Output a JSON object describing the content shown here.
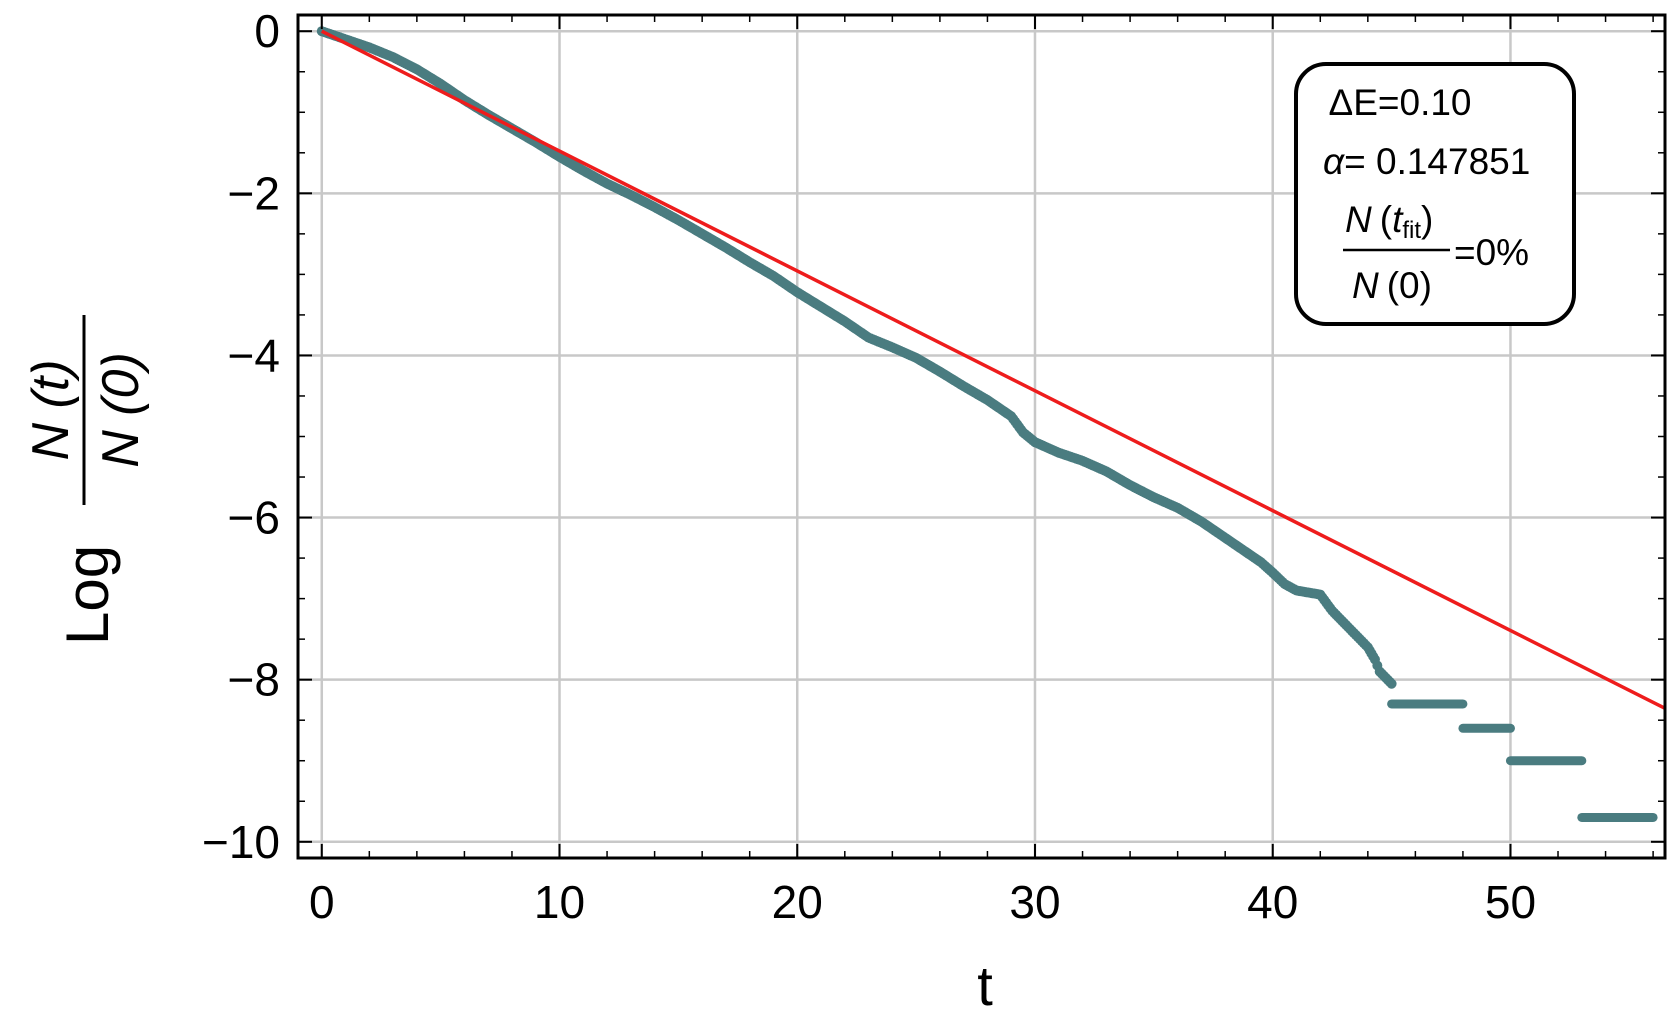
{
  "chart_data": {
    "type": "scatter",
    "title": "",
    "xlabel": "t",
    "ylabel": {
      "prefix": "Log",
      "numerator": "N (t)",
      "denominator": "N (0)"
    },
    "xlim": [
      -1,
      56.5
    ],
    "ylim": [
      -10.2,
      0.2
    ],
    "x_ticks": [
      0,
      10,
      20,
      30,
      40,
      50
    ],
    "y_ticks": [
      0,
      -2,
      -4,
      -6,
      -8,
      -10
    ],
    "x_tick_labels": [
      "0",
      "10",
      "20",
      "30",
      "40",
      "50"
    ],
    "y_tick_labels": [
      "0",
      "−2",
      "−4",
      "−6",
      "−8",
      "−10"
    ],
    "grid": true,
    "colors": {
      "data": "#4a7c80",
      "fit": "#ee1c1c",
      "grid": "#c8c8c8"
    },
    "series": [
      {
        "kind": "points",
        "points": [
          [
            0,
            0
          ],
          [
            1,
            -0.1
          ],
          [
            2,
            -0.2
          ],
          [
            3,
            -0.32
          ],
          [
            4,
            -0.47
          ],
          [
            5,
            -0.65
          ],
          [
            6,
            -0.85
          ],
          [
            7,
            -1.03
          ],
          [
            8,
            -1.2
          ],
          [
            9,
            -1.37
          ],
          [
            10,
            -1.55
          ],
          [
            11,
            -1.72
          ],
          [
            12,
            -1.88
          ],
          [
            13,
            -2.02
          ],
          [
            14,
            -2.17
          ],
          [
            15,
            -2.33
          ],
          [
            16,
            -2.5
          ],
          [
            17,
            -2.67
          ],
          [
            18,
            -2.85
          ],
          [
            19,
            -3.02
          ],
          [
            20,
            -3.22
          ],
          [
            21,
            -3.4
          ],
          [
            22,
            -3.58
          ],
          [
            23,
            -3.78
          ],
          [
            24,
            -3.9
          ],
          [
            25,
            -4.03
          ],
          [
            26,
            -4.2
          ],
          [
            27,
            -4.38
          ],
          [
            28,
            -4.55
          ],
          [
            29,
            -4.75
          ],
          [
            29.5,
            -4.95
          ],
          [
            30,
            -5.07
          ],
          [
            31,
            -5.2
          ],
          [
            32,
            -5.3
          ],
          [
            33,
            -5.43
          ],
          [
            34,
            -5.6
          ],
          [
            35,
            -5.75
          ],
          [
            36,
            -5.88
          ],
          [
            37,
            -6.05
          ],
          [
            38,
            -6.25
          ],
          [
            39,
            -6.45
          ],
          [
            39.5,
            -6.55
          ],
          [
            40,
            -6.68
          ],
          [
            40.5,
            -6.82
          ],
          [
            41,
            -6.9
          ],
          [
            42,
            -6.95
          ],
          [
            42.5,
            -7.15
          ],
          [
            43,
            -7.3
          ],
          [
            43.5,
            -7.45
          ],
          [
            44,
            -7.6
          ],
          [
            44.3,
            -7.75
          ],
          [
            44.5,
            -7.9
          ],
          [
            45,
            -8.05
          ]
        ]
      },
      {
        "kind": "steps",
        "segments": [
          [
            45,
            48,
            -8.3
          ],
          [
            48,
            50,
            -8.6
          ],
          [
            50,
            53,
            -9.0
          ],
          [
            53,
            56,
            -9.7
          ]
        ]
      },
      {
        "kind": "line",
        "x": [
          0,
          56.5
        ],
        "y": [
          0,
          -8.354
        ]
      }
    ]
  },
  "legend": {
    "line1": "ΔE=0.10",
    "alpha_symbol": "α",
    "alpha_value": "= 0.147851",
    "frac_num_N": "N",
    "frac_num_t": "t",
    "frac_num_sub": "fit",
    "frac_den_N": "N",
    "frac_den_rest": "(0)",
    "frac_result": "=0%"
  }
}
